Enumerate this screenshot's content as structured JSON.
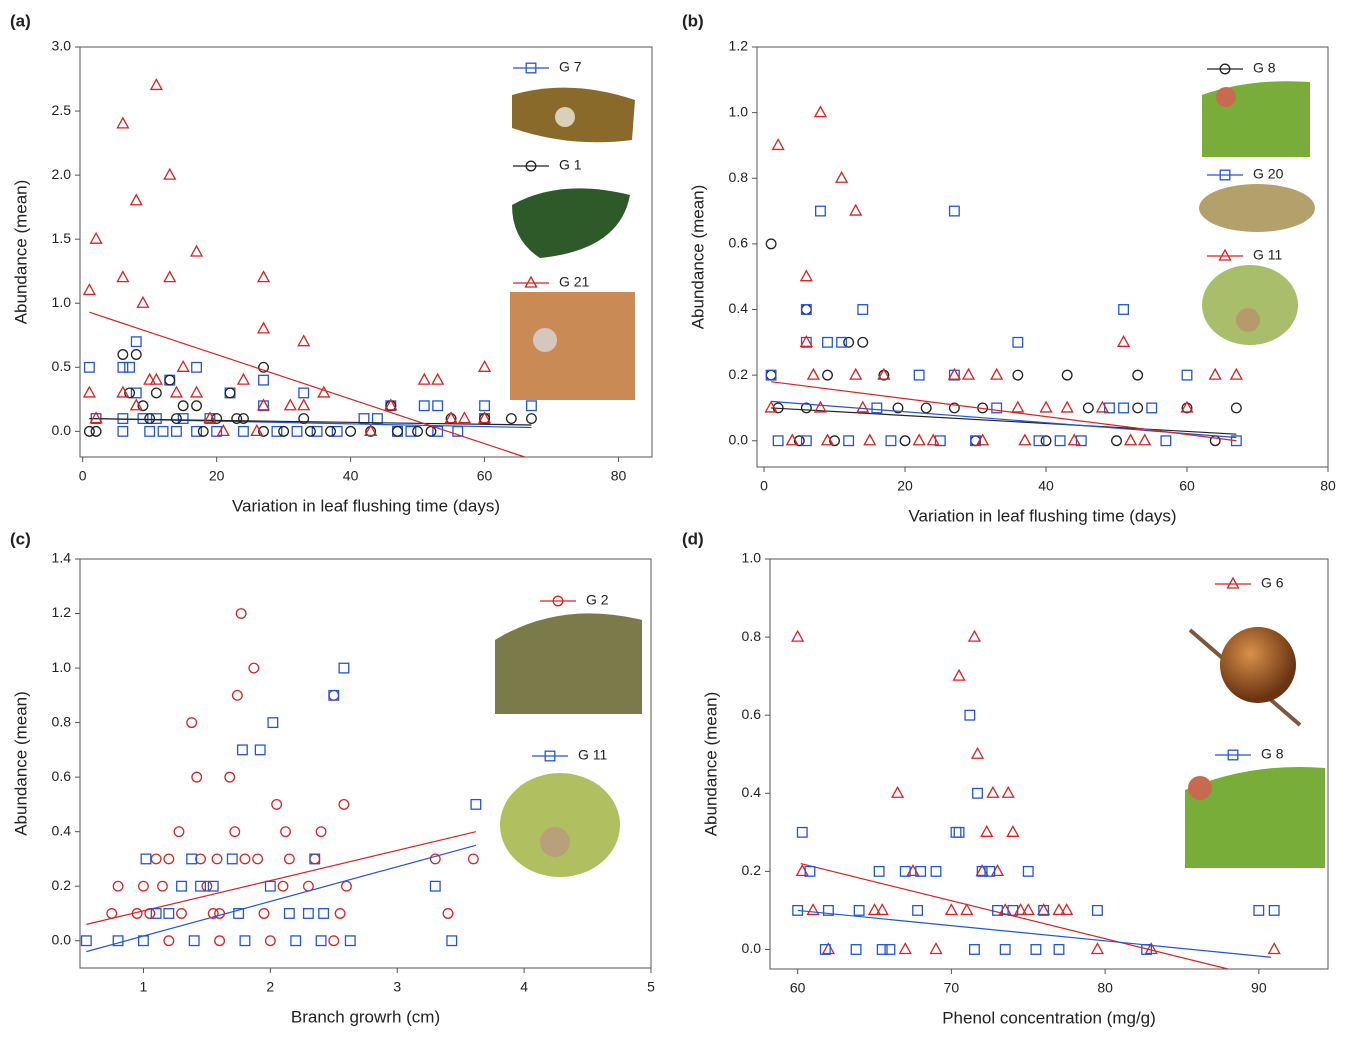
{
  "chart_data": [
    {
      "type": "scatter",
      "panel": "(a)",
      "xlabel": "Variation in leaf flushing time (days)",
      "ylabel": "Abundance (mean)",
      "xlim": [
        -0.4,
        85
      ],
      "ylim": [
        -0.2,
        3.0
      ],
      "xticks": [
        0,
        20,
        40,
        60,
        80
      ],
      "yticks": [
        {
          "value": 0,
          "label": "0.0"
        },
        {
          "value": 0.5,
          "label": "0.5"
        },
        {
          "value": 1,
          "label": "1.0"
        },
        {
          "value": 1.5,
          "label": "1.5"
        },
        {
          "value": 2,
          "label": "2.0"
        },
        {
          "value": 2.5,
          "label": "2.5"
        },
        {
          "value": 3,
          "label": "3.0"
        }
      ],
      "series": [
        {
          "name": "G 7",
          "color": "#2255dd",
          "marker": "square",
          "x": [
            1,
            2,
            6,
            6,
            6,
            7,
            8,
            8,
            9,
            10,
            11,
            12,
            13,
            14,
            15,
            17,
            17,
            19,
            20,
            22,
            24,
            27,
            27,
            29,
            32,
            33,
            35,
            38,
            42,
            44,
            46,
            47,
            49,
            51,
            53,
            53,
            56,
            60,
            60,
            67
          ],
          "values": [
            0.5,
            0.1,
            0.5,
            0.1,
            0,
            0.5,
            0.7,
            0.3,
            0.1,
            0,
            0.1,
            0,
            0.4,
            0,
            0.1,
            0.5,
            0,
            0.1,
            0,
            0.3,
            0,
            0.4,
            0.2,
            0,
            0,
            0.3,
            0,
            0,
            0.1,
            0.1,
            0.2,
            0,
            0,
            0.2,
            0.2,
            0,
            0,
            0.2,
            0.1,
            0.2
          ],
          "fit": {
            "x": [
              1,
              67
            ],
            "values": [
              0.1,
              0.03
            ]
          }
        },
        {
          "name": "G 1",
          "color": "#222222",
          "marker": "circle",
          "x": [
            1,
            2,
            6,
            7,
            8,
            9,
            10,
            11,
            13,
            14,
            15,
            17,
            18,
            20,
            22,
            23,
            24,
            27,
            27,
            30,
            33,
            34,
            37,
            40,
            43,
            46,
            47,
            50,
            52,
            55,
            60,
            64,
            67
          ],
          "values": [
            0,
            0,
            0.6,
            0.3,
            0.6,
            0.2,
            0.1,
            0.3,
            0.4,
            0.1,
            0.2,
            0.2,
            0,
            0.1,
            0.3,
            0.1,
            0.1,
            0.5,
            0,
            0,
            0.1,
            0,
            0,
            0,
            0,
            0.2,
            0,
            0,
            0,
            0.1,
            0.1,
            0.1,
            0.1
          ],
          "fit": {
            "x": [
              1,
              67
            ],
            "values": [
              0.1,
              0.05
            ]
          }
        },
        {
          "name": "G 21",
          "color": "#dd2222",
          "marker": "triangle",
          "x": [
            1,
            1,
            2,
            2,
            6,
            6,
            6,
            8,
            8,
            9,
            10,
            11,
            11,
            13,
            13,
            14,
            15,
            17,
            17,
            19,
            21,
            24,
            26,
            27,
            27,
            27,
            31,
            33,
            33,
            36,
            43,
            46,
            51,
            53,
            55,
            57,
            60,
            60
          ],
          "values": [
            1.1,
            0.3,
            1.5,
            0.1,
            2.4,
            1.2,
            0.3,
            1.8,
            0.2,
            1.0,
            0.4,
            2.7,
            0.4,
            2.0,
            1.2,
            0.3,
            0.5,
            1.4,
            0.3,
            0.1,
            0,
            0.4,
            0,
            1.2,
            0.8,
            0.2,
            0.2,
            0.7,
            0.2,
            0.3,
            0,
            0.2,
            0.4,
            0.4,
            0.1,
            0.1,
            0.5,
            0.1
          ],
          "fit": {
            "x": [
              1,
              66
            ],
            "values": [
              0.93,
              -0.2
            ]
          }
        }
      ]
    },
    {
      "type": "scatter",
      "panel": "(b)",
      "xlabel": "Variation in leaf flushing time (days)",
      "ylabel": "Abundance (mean)",
      "xlim": [
        -1,
        80
      ],
      "ylim": [
        -0.08,
        1.2
      ],
      "xticks": [
        0,
        20,
        40,
        60,
        80
      ],
      "yticks": [
        {
          "value": 0,
          "label": "0.0"
        },
        {
          "value": 0.2,
          "label": "0.2"
        },
        {
          "value": 0.4,
          "label": "0.4"
        },
        {
          "value": 0.6,
          "label": "0.6"
        },
        {
          "value": 0.8,
          "label": "0.8"
        },
        {
          "value": 1,
          "label": "1.0"
        },
        {
          "value": 1.2,
          "label": "1.2"
        }
      ],
      "series": [
        {
          "name": "G 8",
          "color": "#222222",
          "marker": "circle",
          "x": [
            1,
            1,
            2,
            6,
            6,
            9,
            12,
            14,
            17,
            19,
            23,
            27,
            31,
            36,
            43,
            46,
            53,
            53,
            60,
            67,
            5,
            10,
            20,
            30,
            40,
            50,
            64
          ],
          "values": [
            0.6,
            0.2,
            0.1,
            0.4,
            0.1,
            0.2,
            0.3,
            0.3,
            0.2,
            0.1,
            0.1,
            0.1,
            0.1,
            0.2,
            0.2,
            0.1,
            0.2,
            0.1,
            0.1,
            0.1,
            0,
            0,
            0,
            0,
            0,
            0,
            0
          ],
          "fit": {
            "x": [
              1,
              67
            ],
            "values": [
              0.1,
              0.02
            ]
          }
        },
        {
          "name": "G 20",
          "color": "#2255dd",
          "marker": "square",
          "x": [
            1,
            2,
            6,
            6,
            8,
            9,
            11,
            14,
            16,
            22,
            27,
            27,
            33,
            36,
            39,
            45,
            49,
            51,
            51,
            55,
            60,
            67,
            6,
            12,
            18,
            25,
            30,
            42,
            57
          ],
          "values": [
            0.2,
            0,
            0.4,
            0.3,
            0.7,
            0.3,
            0.3,
            0.4,
            0.1,
            0.2,
            0.7,
            0.2,
            0.1,
            0.3,
            0,
            0,
            0.1,
            0.4,
            0.1,
            0.1,
            0.2,
            0,
            0,
            0,
            0,
            0,
            0,
            0,
            0
          ],
          "fit": {
            "x": [
              1,
              67
            ],
            "values": [
              0.12,
              0.01
            ]
          }
        },
        {
          "name": "G 11",
          "color": "#dd2222",
          "marker": "triangle",
          "x": [
            1,
            2,
            6,
            6,
            7,
            8,
            8,
            11,
            13,
            13,
            14,
            17,
            22,
            27,
            29,
            33,
            36,
            40,
            43,
            48,
            51,
            54,
            60,
            64,
            67,
            4,
            9,
            15,
            24,
            31,
            37,
            44,
            52
          ],
          "values": [
            0.1,
            0.9,
            0.5,
            0.3,
            0.2,
            1.0,
            0.1,
            0.8,
            0.7,
            0.2,
            0.1,
            0.2,
            0,
            0.2,
            0.2,
            0.2,
            0.1,
            0.1,
            0.1,
            0.1,
            0.3,
            0,
            0.1,
            0.2,
            0.2,
            0,
            0,
            0,
            0,
            0,
            0,
            0,
            0
          ],
          "fit": {
            "x": [
              1,
              67
            ],
            "values": [
              0.18,
              0.0
            ]
          }
        }
      ]
    },
    {
      "type": "scatter",
      "panel": "(c)",
      "xlabel": "Branch growrh (cm)",
      "ylabel": "Abundance (mean)",
      "xlim": [
        0.5,
        5
      ],
      "ylim": [
        -0.1,
        1.4
      ],
      "xticks": [
        1,
        2,
        3,
        4,
        5
      ],
      "yticks": [
        {
          "value": 0,
          "label": "0.0"
        },
        {
          "value": 0.2,
          "label": "0.2"
        },
        {
          "value": 0.4,
          "label": "0.4"
        },
        {
          "value": 0.6,
          "label": "0.6"
        },
        {
          "value": 0.8,
          "label": "0.8"
        },
        {
          "value": 1,
          "label": "1.0"
        },
        {
          "value": 1.2,
          "label": "1.2"
        },
        {
          "value": 1.4,
          "label": "1.4"
        }
      ],
      "series": [
        {
          "name": "G 2",
          "color": "#dd2222",
          "marker": "circle",
          "x": [
            0.75,
            0.8,
            0.95,
            1.0,
            1.05,
            1.1,
            1.15,
            1.2,
            1.28,
            1.3,
            1.38,
            1.42,
            1.45,
            1.5,
            1.55,
            1.58,
            1.6,
            1.68,
            1.72,
            1.74,
            1.77,
            1.8,
            1.87,
            1.9,
            1.95,
            2.05,
            2.1,
            2.12,
            2.15,
            2.3,
            2.35,
            2.4,
            2.5,
            2.55,
            2.58,
            2.6,
            3.3,
            3.4,
            3.6,
            1.2,
            1.6,
            2.0,
            2.5
          ],
          "values": [
            0.1,
            0.2,
            0.1,
            0.2,
            0.1,
            0.3,
            0.2,
            0.3,
            0.4,
            0.1,
            0.8,
            0.6,
            0.3,
            0.2,
            0.1,
            0.3,
            0.1,
            0.6,
            0.4,
            0.9,
            1.2,
            0.3,
            1.0,
            0.3,
            0.1,
            0.5,
            0.2,
            0.4,
            0.3,
            0.2,
            0.3,
            0.4,
            0.9,
            0.1,
            0.5,
            0.2,
            0.3,
            0.1,
            0.3,
            0,
            0,
            0,
            0
          ],
          "fit": {
            "x": [
              0.55,
              3.62
            ],
            "values": [
              0.06,
              0.4
            ]
          }
        },
        {
          "name": "G 11",
          "color": "#2255dd",
          "marker": "square",
          "x": [
            0.55,
            0.8,
            1.0,
            1.02,
            1.1,
            1.2,
            1.3,
            1.38,
            1.45,
            1.55,
            1.7,
            1.75,
            1.78,
            1.92,
            2.0,
            2.02,
            2.15,
            2.3,
            2.35,
            2.42,
            2.5,
            2.58,
            2.63,
            3.3,
            3.43,
            3.62,
            1.4,
            1.8,
            2.2,
            2.4
          ],
          "values": [
            0,
            0,
            0,
            0.3,
            0.1,
            0.1,
            0.2,
            0.3,
            0.2,
            0.2,
            0.3,
            0.1,
            0.7,
            0.7,
            0.2,
            0.8,
            0.1,
            0.1,
            0.3,
            0.1,
            0.9,
            1.0,
            0,
            0.2,
            0,
            0.5,
            0,
            0,
            0,
            0
          ],
          "fit": {
            "x": [
              0.55,
              3.62
            ],
            "values": [
              -0.04,
              0.35
            ]
          }
        }
      ]
    },
    {
      "type": "scatter",
      "panel": "(d)",
      "xlabel": "Phenol concentration (mg/g)",
      "ylabel": "Abundance (mean)",
      "xlim": [
        58.2,
        94.5
      ],
      "ylim": [
        -0.05,
        1.0
      ],
      "xticks": [
        60,
        70,
        80,
        90
      ],
      "yticks": [
        {
          "value": 0,
          "label": "0.0"
        },
        {
          "value": 0.2,
          "label": "0.2"
        },
        {
          "value": 0.4,
          "label": "0.4"
        },
        {
          "value": 0.6,
          "label": "0.6"
        },
        {
          "value": 0.8,
          "label": "0.8"
        },
        {
          "value": 1,
          "label": "1.0"
        }
      ],
      "series": [
        {
          "name": "G 6",
          "color": "#dd2222",
          "marker": "triangle",
          "x": [
            60,
            60.3,
            61,
            62,
            65,
            65.5,
            66.5,
            67,
            67.5,
            69,
            70,
            70.5,
            71,
            71.5,
            71.7,
            72,
            72.3,
            72.7,
            73,
            73.5,
            73.7,
            74,
            74.5,
            75,
            76,
            77,
            77.5,
            79.5,
            83,
            91
          ],
          "values": [
            0.8,
            0.2,
            0.1,
            0,
            0.1,
            0.1,
            0.4,
            0,
            0.2,
            0,
            0.1,
            0.7,
            0.1,
            0.8,
            0.5,
            0.2,
            0.3,
            0.4,
            0.2,
            0.1,
            0.4,
            0.3,
            0.1,
            0.1,
            0.1,
            0.1,
            0.1,
            0,
            0,
            0
          ],
          "fit": {
            "x": [
              60.2,
              88
            ],
            "values": [
              0.22,
              -0.05
            ]
          }
        },
        {
          "name": "G 8",
          "color": "#2255dd",
          "marker": "square",
          "x": [
            60,
            60.3,
            60.8,
            61.8,
            62,
            63.8,
            64,
            65.3,
            65.5,
            66,
            67,
            67.8,
            68,
            69,
            70.3,
            70.5,
            71.2,
            71.5,
            71.7,
            72,
            72.5,
            73,
            73.5,
            74,
            75,
            75.5,
            76,
            77,
            79.5,
            82.7,
            90,
            91
          ],
          "values": [
            0.1,
            0.3,
            0.2,
            0,
            0.1,
            0,
            0.1,
            0.2,
            0,
            0,
            0.2,
            0.1,
            0.2,
            0.2,
            0.3,
            0.3,
            0.6,
            0,
            0.4,
            0.2,
            0.2,
            0.1,
            0,
            0.1,
            0.2,
            0,
            0.1,
            0,
            0.1,
            0,
            0.1,
            0.1
          ],
          "fit": {
            "x": [
              60,
              90.8
            ],
            "values": [
              0.1,
              -0.02
            ]
          }
        }
      ]
    }
  ]
}
